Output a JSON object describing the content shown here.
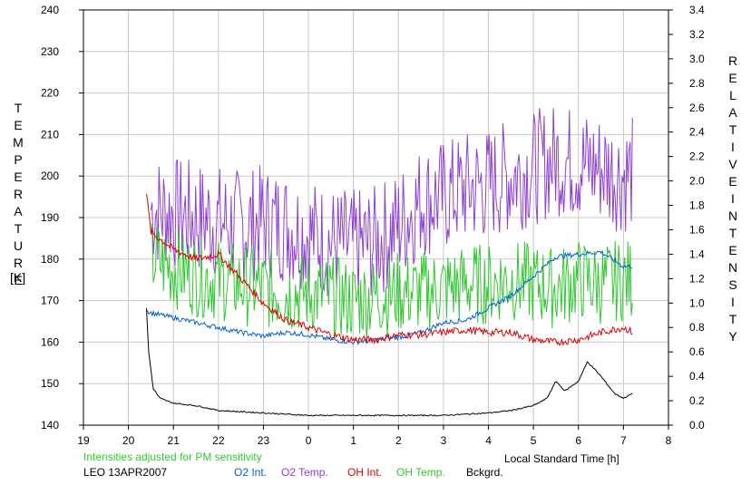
{
  "left_axis_label": "TEMPERATURE",
  "left_axis_unit": "[K]",
  "right_axis_label_1": "RELATIVE",
  "right_axis_label_2": "INTENSITY",
  "x_axis_label": "Local Standard Time [h]",
  "note": "Intensities adjusted for PM sensitivity",
  "station_date": "LEO 13APR2007",
  "colors": {
    "o2_int": "#0060d0",
    "o2_temp": "#9040d0",
    "oh_int": "#e00000",
    "oh_temp": "#30c830",
    "bckgrd": "#000000",
    "note": "#30c830"
  },
  "chart_data": {
    "type": "line",
    "x_ticks": [
      "19",
      "20",
      "21",
      "22",
      "23",
      "0",
      "1",
      "2",
      "3",
      "4",
      "5",
      "6",
      "7",
      "8"
    ],
    "x_range": [
      19,
      32
    ],
    "left_ticks": [
      "140",
      "150",
      "160",
      "170",
      "180",
      "190",
      "200",
      "210",
      "220",
      "230",
      "240"
    ],
    "left_range": [
      140,
      240
    ],
    "right_ticks": [
      "0.0",
      "0.2",
      "0.4",
      "0.6",
      "0.8",
      "1.0",
      "1.2",
      "1.4",
      "1.6",
      "1.8",
      "2.0",
      "2.2",
      "2.4",
      "2.6",
      "2.8",
      "3.0",
      "3.2",
      "3.4"
    ],
    "right_range": [
      0.0,
      3.4
    ],
    "legend": [
      "O2 Int.",
      "O2 Temp.",
      "OH Int.",
      "OH Temp.",
      "Bckgrd."
    ],
    "series": [
      {
        "name": "O2 Temp.",
        "axis": "left",
        "color": "#9040d0",
        "x": [
          20.5,
          21.0,
          21.5,
          22.0,
          22.5,
          23.0,
          23.5,
          24.0,
          24.5,
          25.0,
          25.5,
          26.0,
          26.5,
          27.0,
          27.5,
          28.0,
          28.5,
          29.0,
          29.5,
          30.0,
          30.5,
          31.0,
          31.2
        ],
        "y": [
          192,
          191,
          190,
          189,
          188,
          189,
          188,
          186,
          184,
          183,
          184,
          188,
          194,
          195,
          197,
          198,
          200,
          202,
          204,
          203,
          202,
          200,
          201
        ]
      },
      {
        "name": "OH Temp.",
        "axis": "left",
        "color": "#30c830",
        "x": [
          20.5,
          21.0,
          21.5,
          22.0,
          22.5,
          23.0,
          23.5,
          24.0,
          24.5,
          25.0,
          25.5,
          26.0,
          26.5,
          27.0,
          27.5,
          28.0,
          28.5,
          29.0,
          29.5,
          30.0,
          30.5,
          31.0,
          31.2
        ],
        "y": [
          180,
          178,
          176,
          175,
          174,
          173,
          172,
          172,
          171,
          170,
          171,
          172,
          172,
          173,
          174,
          174,
          175,
          174,
          173,
          175,
          174,
          175,
          175
        ]
      },
      {
        "name": "O2 Int.",
        "axis": "right",
        "color": "#0060d0",
        "x": [
          20.4,
          20.5,
          21.0,
          21.5,
          22.0,
          22.5,
          23.0,
          23.5,
          24.0,
          24.5,
          25.0,
          25.5,
          26.0,
          26.5,
          27.0,
          27.5,
          28.0,
          28.5,
          29.0,
          29.5,
          30.0,
          30.5,
          31.0,
          31.2
        ],
        "y": [
          0.94,
          0.92,
          0.88,
          0.84,
          0.8,
          0.76,
          0.73,
          0.76,
          0.74,
          0.7,
          0.68,
          0.7,
          0.72,
          0.76,
          0.84,
          0.86,
          0.96,
          1.06,
          1.22,
          1.38,
          1.4,
          1.42,
          1.3,
          1.3
        ]
      },
      {
        "name": "OH Int.",
        "axis": "right",
        "color": "#e00000",
        "x": [
          20.4,
          20.5,
          21.0,
          21.5,
          22.0,
          22.5,
          23.0,
          23.5,
          24.0,
          24.5,
          25.0,
          25.5,
          26.0,
          26.5,
          27.0,
          27.5,
          28.0,
          28.5,
          29.0,
          29.5,
          30.0,
          30.5,
          31.0,
          31.2
        ],
        "y": [
          1.9,
          1.58,
          1.44,
          1.36,
          1.4,
          1.2,
          1.0,
          0.86,
          0.8,
          0.74,
          0.7,
          0.7,
          0.74,
          0.74,
          0.76,
          0.78,
          0.76,
          0.76,
          0.7,
          0.68,
          0.7,
          0.76,
          0.8,
          0.76
        ]
      },
      {
        "name": "Bckgrd.",
        "axis": "right",
        "color": "#000000",
        "x": [
          20.4,
          20.45,
          20.55,
          20.7,
          21.0,
          21.5,
          22.0,
          23.0,
          24.0,
          25.0,
          26.0,
          27.0,
          28.0,
          28.5,
          29.0,
          29.3,
          29.5,
          29.7,
          30.0,
          30.2,
          30.5,
          30.8,
          31.0,
          31.2
        ],
        "y": [
          0.96,
          0.6,
          0.3,
          0.22,
          0.18,
          0.16,
          0.12,
          0.1,
          0.08,
          0.08,
          0.08,
          0.08,
          0.1,
          0.12,
          0.16,
          0.22,
          0.36,
          0.28,
          0.36,
          0.52,
          0.4,
          0.26,
          0.22,
          0.26
        ]
      }
    ]
  }
}
